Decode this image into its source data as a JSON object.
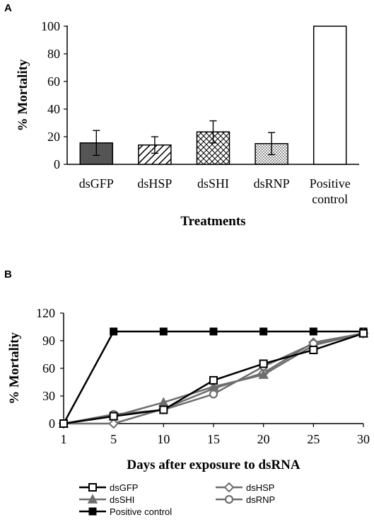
{
  "chart_data": [
    {
      "panel": "A",
      "type": "bar",
      "title": "",
      "xlabel": "Treatments",
      "ylabel": "% Mortality",
      "ylim": [
        0,
        100
      ],
      "yticks": [
        0,
        20,
        40,
        60,
        80,
        100
      ],
      "categories": [
        "dsGFP",
        "dsHSP",
        "dsSHI",
        "dsRNP",
        "Positive control"
      ],
      "category_lines": [
        [
          "dsGFP"
        ],
        [
          "dsHSP"
        ],
        [
          "dsSHI"
        ],
        [
          "dsRNP"
        ],
        [
          "Positive",
          "control"
        ]
      ],
      "values": [
        15.5,
        14,
        23.5,
        15,
        100
      ],
      "errors": [
        9,
        6,
        8,
        8,
        0
      ],
      "fills": [
        "solid-dark",
        "diagonal-hatch",
        "crosshatch",
        "dotted",
        "white"
      ],
      "colors": {
        "dark": "#555555",
        "edge": "#000000"
      }
    },
    {
      "panel": "B",
      "type": "line",
      "title": "",
      "xlabel": "Days after exposure to dsRNA",
      "ylabel": "% Mortality",
      "x": [
        1,
        5,
        10,
        15,
        20,
        25,
        30
      ],
      "xticks": [
        "1",
        "5",
        "10",
        "15",
        "20",
        "25",
        "30"
      ],
      "ylim": [
        0,
        120
      ],
      "yticks": [
        0,
        30,
        60,
        90,
        120
      ],
      "series": [
        {
          "name": "dsGFP",
          "marker": "square-open",
          "color": "#000000",
          "values": [
            0,
            8,
            15,
            47,
            65,
            80,
            98
          ]
        },
        {
          "name": "dsHSP",
          "marker": "diamond-open",
          "color": "#6e6e6e",
          "values": [
            0,
            0,
            16,
            38,
            55,
            88,
            98
          ]
        },
        {
          "name": "dsSHI",
          "marker": "triangle",
          "color": "#6e6e6e",
          "values": [
            0,
            8,
            23,
            40,
            53,
            85,
            98
          ]
        },
        {
          "name": "dsRNP",
          "marker": "circle-open",
          "color": "#6e6e6e",
          "values": [
            0,
            10,
            15,
            32,
            62,
            87,
            98
          ]
        },
        {
          "name": "Positive control",
          "marker": "square-filled",
          "color": "#000000",
          "values": [
            0,
            100,
            100,
            100,
            100,
            100,
            100
          ]
        }
      ],
      "legend": "bottom"
    }
  ]
}
